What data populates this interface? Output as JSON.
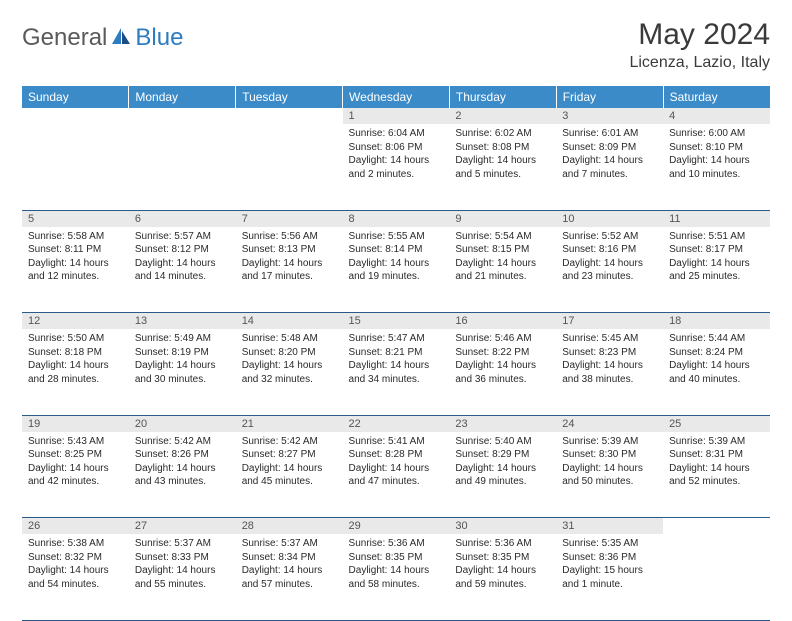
{
  "logo": {
    "general": "General",
    "blue": "Blue"
  },
  "title": "May 2024",
  "location": "Licenza, Lazio, Italy",
  "colors": {
    "header_bg": "#3b8bc9",
    "header_text": "#ffffff",
    "daynum_bg": "#e9e9e9",
    "daynum_text": "#555555",
    "cell_border": "#2a5a8a",
    "body_text": "#2a2a2a",
    "title_text": "#3a3a3a",
    "logo_gray": "#5a5a5a",
    "logo_blue": "#2e7cc0"
  },
  "weekdays": [
    "Sunday",
    "Monday",
    "Tuesday",
    "Wednesday",
    "Thursday",
    "Friday",
    "Saturday"
  ],
  "weeks": [
    [
      null,
      null,
      null,
      {
        "d": "1",
        "sr": "6:04 AM",
        "ss": "8:06 PM",
        "dl": "14 hours and 2 minutes."
      },
      {
        "d": "2",
        "sr": "6:02 AM",
        "ss": "8:08 PM",
        "dl": "14 hours and 5 minutes."
      },
      {
        "d": "3",
        "sr": "6:01 AM",
        "ss": "8:09 PM",
        "dl": "14 hours and 7 minutes."
      },
      {
        "d": "4",
        "sr": "6:00 AM",
        "ss": "8:10 PM",
        "dl": "14 hours and 10 minutes."
      }
    ],
    [
      {
        "d": "5",
        "sr": "5:58 AM",
        "ss": "8:11 PM",
        "dl": "14 hours and 12 minutes."
      },
      {
        "d": "6",
        "sr": "5:57 AM",
        "ss": "8:12 PM",
        "dl": "14 hours and 14 minutes."
      },
      {
        "d": "7",
        "sr": "5:56 AM",
        "ss": "8:13 PM",
        "dl": "14 hours and 17 minutes."
      },
      {
        "d": "8",
        "sr": "5:55 AM",
        "ss": "8:14 PM",
        "dl": "14 hours and 19 minutes."
      },
      {
        "d": "9",
        "sr": "5:54 AM",
        "ss": "8:15 PM",
        "dl": "14 hours and 21 minutes."
      },
      {
        "d": "10",
        "sr": "5:52 AM",
        "ss": "8:16 PM",
        "dl": "14 hours and 23 minutes."
      },
      {
        "d": "11",
        "sr": "5:51 AM",
        "ss": "8:17 PM",
        "dl": "14 hours and 25 minutes."
      }
    ],
    [
      {
        "d": "12",
        "sr": "5:50 AM",
        "ss": "8:18 PM",
        "dl": "14 hours and 28 minutes."
      },
      {
        "d": "13",
        "sr": "5:49 AM",
        "ss": "8:19 PM",
        "dl": "14 hours and 30 minutes."
      },
      {
        "d": "14",
        "sr": "5:48 AM",
        "ss": "8:20 PM",
        "dl": "14 hours and 32 minutes."
      },
      {
        "d": "15",
        "sr": "5:47 AM",
        "ss": "8:21 PM",
        "dl": "14 hours and 34 minutes."
      },
      {
        "d": "16",
        "sr": "5:46 AM",
        "ss": "8:22 PM",
        "dl": "14 hours and 36 minutes."
      },
      {
        "d": "17",
        "sr": "5:45 AM",
        "ss": "8:23 PM",
        "dl": "14 hours and 38 minutes."
      },
      {
        "d": "18",
        "sr": "5:44 AM",
        "ss": "8:24 PM",
        "dl": "14 hours and 40 minutes."
      }
    ],
    [
      {
        "d": "19",
        "sr": "5:43 AM",
        "ss": "8:25 PM",
        "dl": "14 hours and 42 minutes."
      },
      {
        "d": "20",
        "sr": "5:42 AM",
        "ss": "8:26 PM",
        "dl": "14 hours and 43 minutes."
      },
      {
        "d": "21",
        "sr": "5:42 AM",
        "ss": "8:27 PM",
        "dl": "14 hours and 45 minutes."
      },
      {
        "d": "22",
        "sr": "5:41 AM",
        "ss": "8:28 PM",
        "dl": "14 hours and 47 minutes."
      },
      {
        "d": "23",
        "sr": "5:40 AM",
        "ss": "8:29 PM",
        "dl": "14 hours and 49 minutes."
      },
      {
        "d": "24",
        "sr": "5:39 AM",
        "ss": "8:30 PM",
        "dl": "14 hours and 50 minutes."
      },
      {
        "d": "25",
        "sr": "5:39 AM",
        "ss": "8:31 PM",
        "dl": "14 hours and 52 minutes."
      }
    ],
    [
      {
        "d": "26",
        "sr": "5:38 AM",
        "ss": "8:32 PM",
        "dl": "14 hours and 54 minutes."
      },
      {
        "d": "27",
        "sr": "5:37 AM",
        "ss": "8:33 PM",
        "dl": "14 hours and 55 minutes."
      },
      {
        "d": "28",
        "sr": "5:37 AM",
        "ss": "8:34 PM",
        "dl": "14 hours and 57 minutes."
      },
      {
        "d": "29",
        "sr": "5:36 AM",
        "ss": "8:35 PM",
        "dl": "14 hours and 58 minutes."
      },
      {
        "d": "30",
        "sr": "5:36 AM",
        "ss": "8:35 PM",
        "dl": "14 hours and 59 minutes."
      },
      {
        "d": "31",
        "sr": "5:35 AM",
        "ss": "8:36 PM",
        "dl": "15 hours and 1 minute."
      },
      null
    ]
  ],
  "labels": {
    "sunrise": "Sunrise:",
    "sunset": "Sunset:",
    "daylight": "Daylight:"
  }
}
